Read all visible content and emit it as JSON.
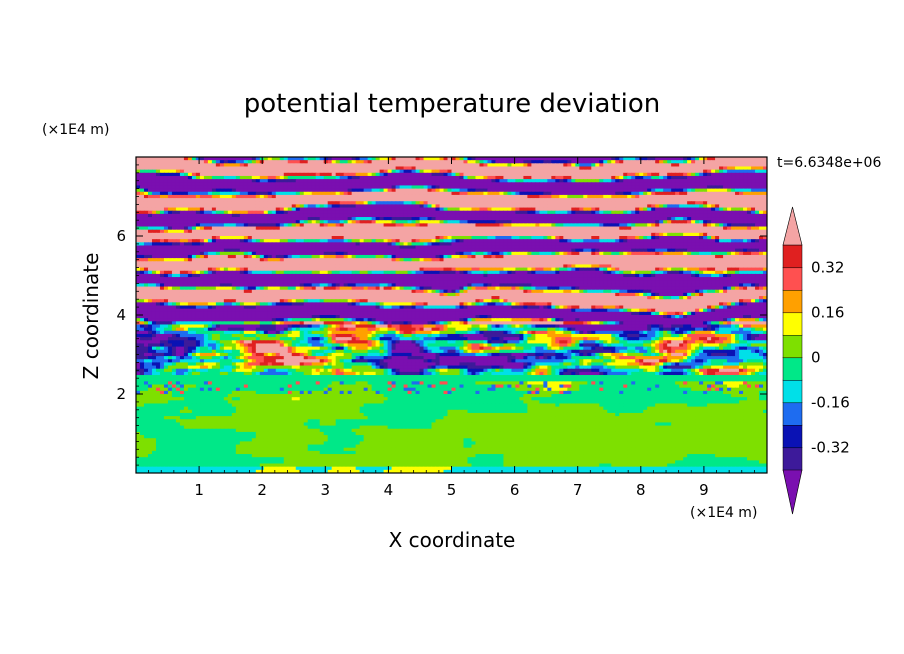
{
  "chart_data": {
    "type": "heatmap",
    "title": "potential temperature deviation",
    "xlabel": "X coordinate",
    "ylabel": "Z coordinate",
    "x_unit": "(×1E4 m)",
    "y_unit": "(×1E4 m)",
    "time_label": "t=6.6348e+06",
    "xlim": [
      0,
      10
    ],
    "ylim": [
      0,
      8
    ],
    "x_ticks": [
      "1",
      "2",
      "3",
      "4",
      "5",
      "6",
      "7",
      "8",
      "9"
    ],
    "y_ticks": [
      "2",
      "4",
      "6"
    ],
    "colorbar": {
      "levels": [
        -0.4,
        -0.32,
        -0.24,
        -0.16,
        -0.08,
        0,
        0.08,
        0.16,
        0.24,
        0.32,
        0.4
      ],
      "labels": [
        "0.32",
        "0.16",
        "0",
        "-0.16",
        "-0.32"
      ],
      "label_values": [
        0.32,
        0.16,
        0,
        -0.16,
        -0.32
      ],
      "colors": [
        "#7a0fb0",
        "#3d1a9a",
        "#0a12b4",
        "#1e6cf0",
        "#00e0e8",
        "#00e888",
        "#7ee000",
        "#ffff00",
        "#ffa000",
        "#ff5050",
        "#e02020",
        "#f4a4a4"
      ],
      "extend": "both",
      "under_color": "#7a0fb0",
      "over_color": "#f4a4a4"
    },
    "layers": [
      {
        "z_range": [
          0,
          2.3
        ],
        "description_value": "near zero, values between -0.08 and 0.08"
      },
      {
        "z_range": [
          2.3,
          2.45
        ],
        "value": -0.05
      },
      {
        "z_range": [
          2.45,
          3.8
        ],
        "values": "mixed full range"
      },
      {
        "z_range": [
          3.8,
          8
        ],
        "values": "alternating bands of below -0.4 and above 0.4"
      }
    ]
  }
}
